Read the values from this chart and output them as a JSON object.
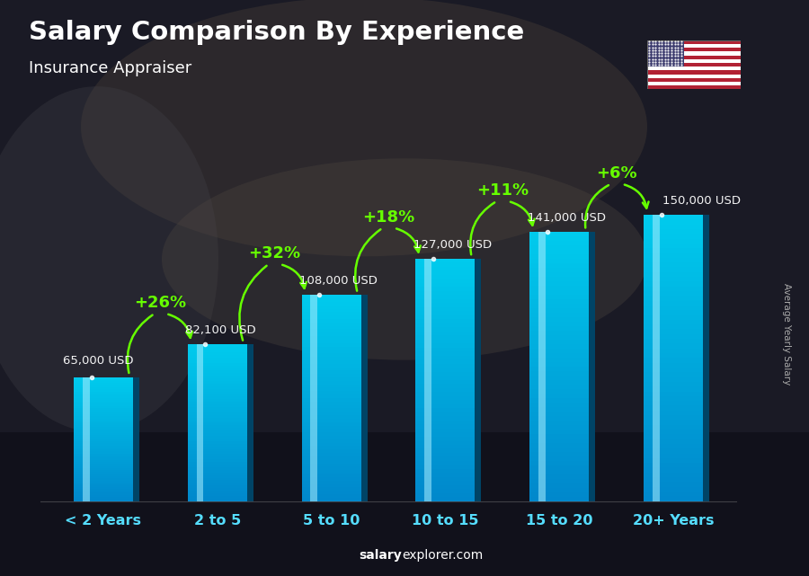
{
  "title": "Salary Comparison By Experience",
  "subtitle": "Insurance Appraiser",
  "categories": [
    "< 2 Years",
    "2 to 5",
    "5 to 10",
    "10 to 15",
    "15 to 20",
    "20+ Years"
  ],
  "values": [
    65000,
    82100,
    108000,
    127000,
    141000,
    150000
  ],
  "labels": [
    "65,000 USD",
    "82,100 USD",
    "108,000 USD",
    "127,000 USD",
    "141,000 USD",
    "150,000 USD"
  ],
  "pct_labels": [
    "+26%",
    "+32%",
    "+18%",
    "+11%",
    "+6%"
  ],
  "bar_face_color": "#00c8f0",
  "bar_highlight": "#80eeff",
  "bar_shadow": "#0088bb",
  "bar_side_color": "#005580",
  "pct_color": "#66ff00",
  "label_color": "#ffffff",
  "cat_color": "#55ddff",
  "ylabel_text": "Average Yearly Salary",
  "ylim_max": 175000,
  "bg_dark": "#1c1c2a",
  "source_salary_color": "#ffffff",
  "source_explorer_color": "#ffffff"
}
